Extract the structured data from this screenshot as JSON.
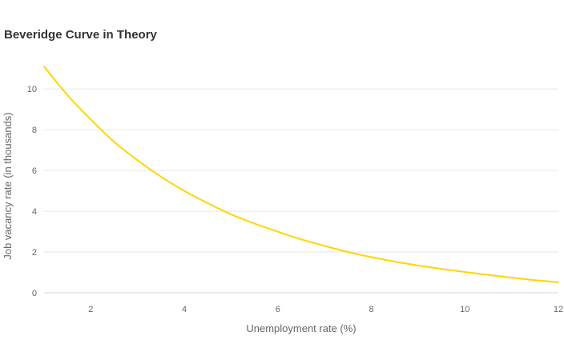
{
  "chart_data": {
    "type": "line",
    "title": "Beveridge Curve in Theory",
    "xlabel": "Unemployment rate (%)",
    "ylabel": "Job vacancy rate (in thousands)",
    "xlim": [
      1,
      12
    ],
    "ylim": [
      0,
      10.4
    ],
    "x_ticks": [
      2,
      4,
      6,
      8,
      10,
      12
    ],
    "y_ticks": [
      0,
      2,
      4,
      6,
      8,
      10
    ],
    "grid": true,
    "legend": "none",
    "series": [
      {
        "color": "#FFD500",
        "x": [
          1,
          1.5,
          2,
          2.5,
          3,
          3.5,
          4,
          4.5,
          5,
          5.5,
          6,
          6.5,
          7,
          7.5,
          8,
          8.5,
          9,
          9.5,
          10,
          10.5,
          11,
          11.5,
          12
        ],
        "y": [
          11.1,
          9.7,
          8.5,
          7.4,
          6.5,
          5.7,
          5.0,
          4.4,
          3.85,
          3.4,
          3.0,
          2.62,
          2.3,
          2.0,
          1.75,
          1.53,
          1.34,
          1.17,
          1.02,
          0.88,
          0.74,
          0.62,
          0.52
        ]
      }
    ]
  },
  "colors": {
    "line": "#FFD500",
    "grid": "#e6e6e6",
    "axis_line": "#ccd6eb",
    "text": "#666666",
    "title": "#333333"
  }
}
